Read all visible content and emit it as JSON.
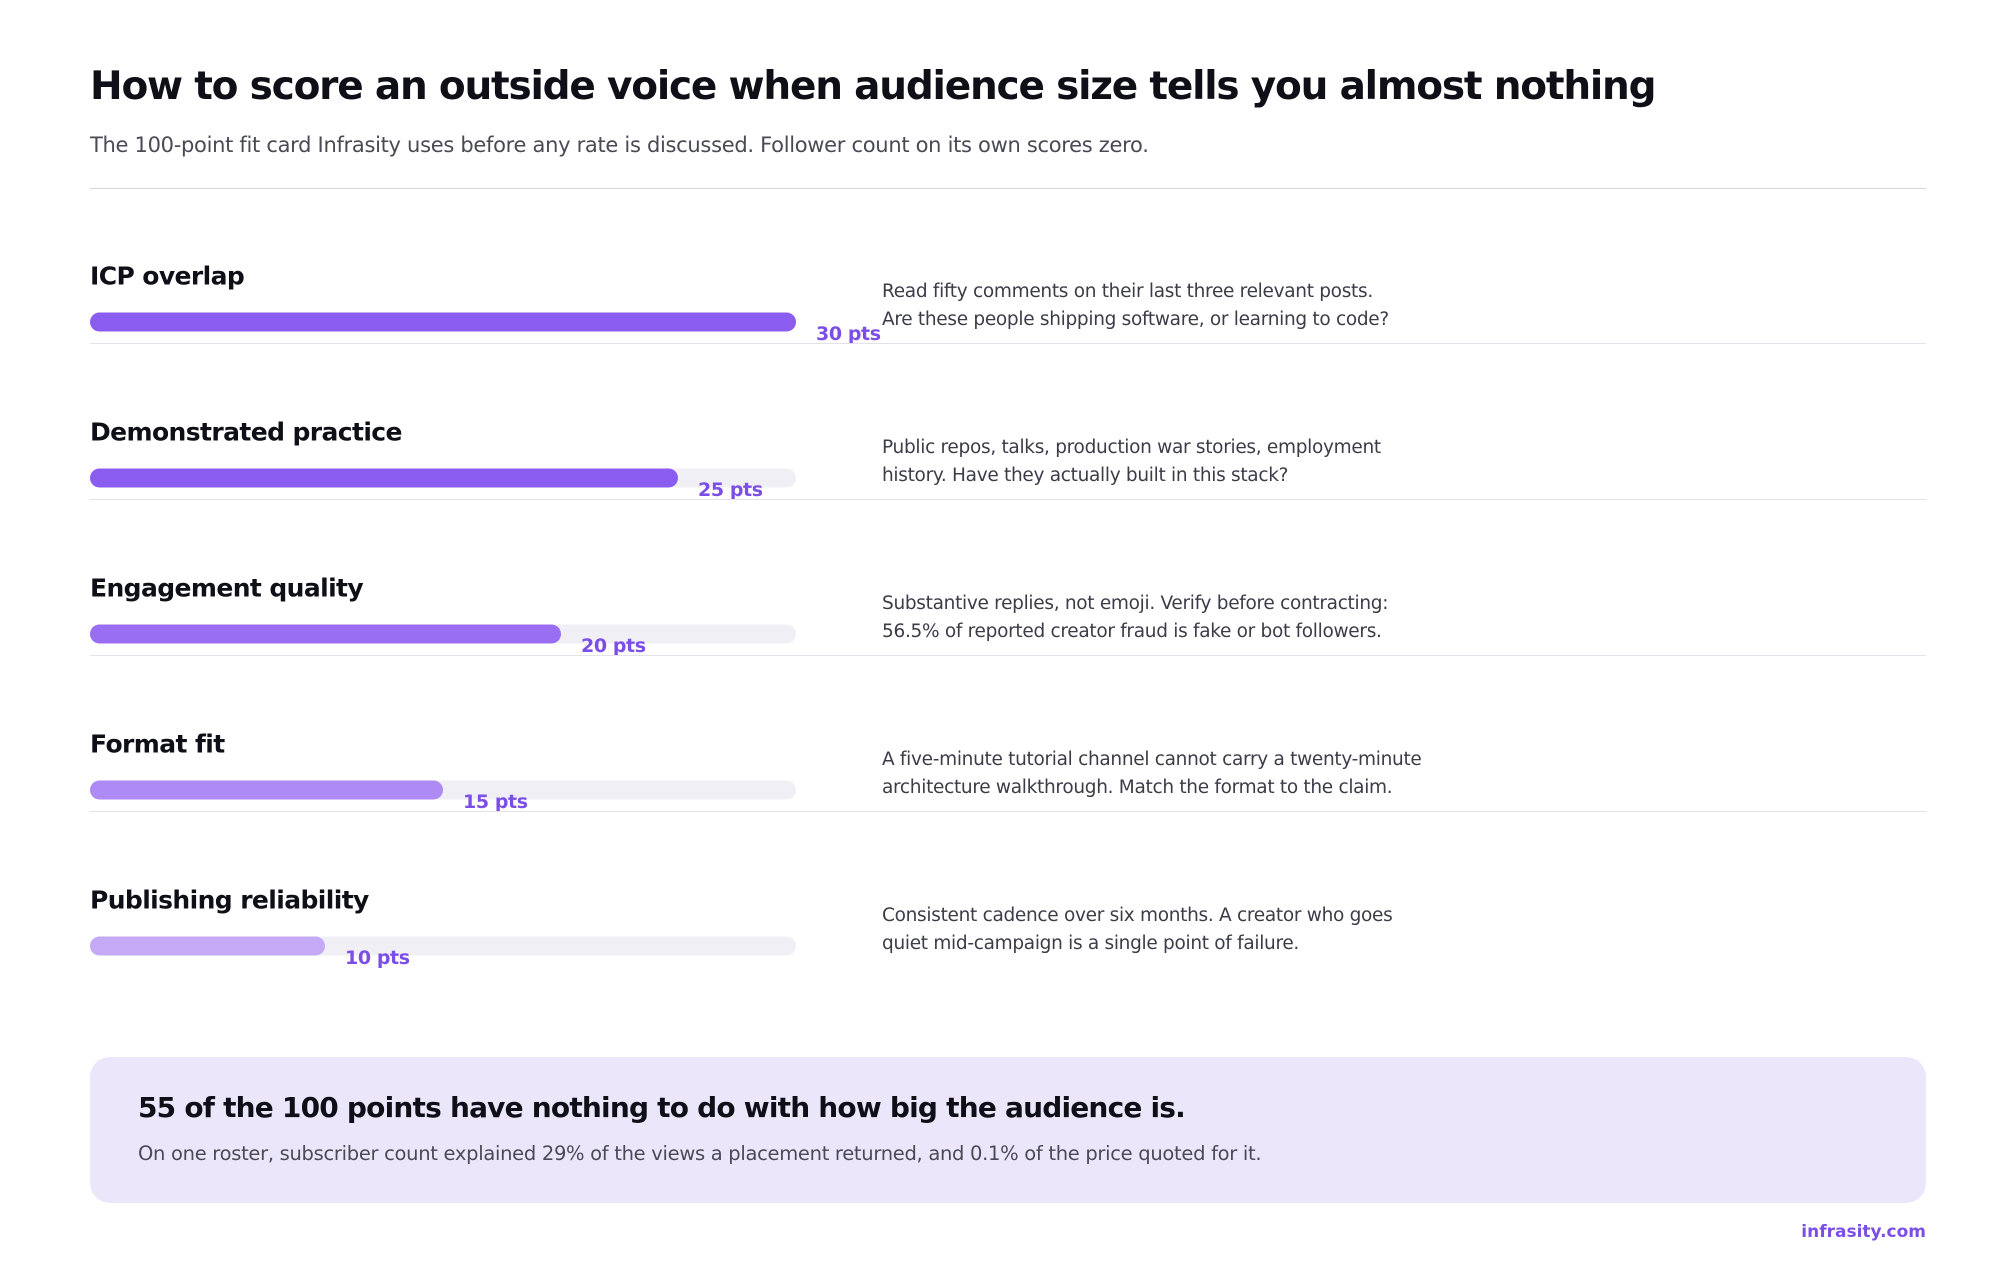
{
  "header": {
    "title": "How to score an outside voice when audience size tells you almost nothing",
    "subtitle": "The 100-point fit card Infrasity uses before any rate is discussed. Follower count on its own scores zero."
  },
  "chart_data": {
    "type": "bar",
    "orientation": "horizontal",
    "xlim": [
      0,
      30
    ],
    "categories": [
      "ICP overlap",
      "Demonstrated practice",
      "Engagement quality",
      "Format fit",
      "Publishing reliability"
    ],
    "values": [
      30,
      25,
      20,
      15,
      10
    ],
    "value_labels": [
      "30 pts",
      "25 pts",
      "20 pts",
      "15 pts",
      "10 pts"
    ],
    "descriptions": [
      [
        "Read fifty comments on their last three relevant posts.",
        "Are these people shipping software, or learning to code?"
      ],
      [
        "Public repos, talks, production war stories, employment",
        "history. Have they actually built in this stack?"
      ],
      [
        "Substantive replies, not emoji. Verify before contracting:",
        "56.5% of reported creator fraud is fake or bot followers."
      ],
      [
        "A five-minute tutorial channel cannot carry a twenty-minute",
        "architecture walkthrough. Match the format to the claim."
      ],
      [
        "Consistent cadence over six months. A creator who goes",
        "quiet mid-campaign is a single point of failure."
      ]
    ],
    "bar_colors": [
      "#8a5cf0",
      "#8a5cf0",
      "#9a6ef2",
      "#ae8af5",
      "#c4a9f7"
    ],
    "track_color": "#f1eff6",
    "grid": false,
    "legend": "none"
  },
  "callout": {
    "heading": "55 of the 100 points have nothing to do with how big the audience is.",
    "body": "On one roster, subscriber count explained 29% of the views a placement returned, and 0.1% of the price quoted for it."
  },
  "footer": {
    "brand": "infrasity.com"
  }
}
